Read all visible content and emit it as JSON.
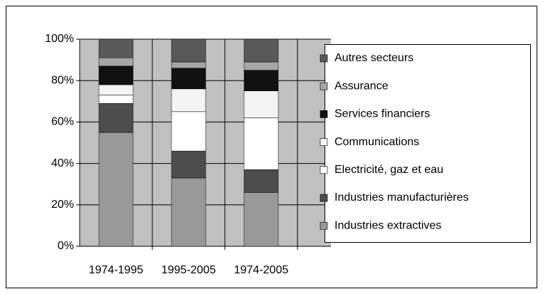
{
  "chart_data": {
    "type": "stacked-bar",
    "categories": [
      "1974-1995",
      "1995-2005",
      "1974-2005"
    ],
    "series": [
      {
        "name": "Industries extractives",
        "color": "#999999",
        "values": [
          55,
          33,
          26
        ]
      },
      {
        "name": "Industries manufacturières",
        "color": "#4d4d4d",
        "values": [
          14,
          13,
          11
        ]
      },
      {
        "name": "Electricité, gaz et eau",
        "color": "#ffffff",
        "values": [
          4,
          19,
          25
        ]
      },
      {
        "name": "Communications",
        "color": "#f4f4f4",
        "values": [
          5,
          11,
          13
        ]
      },
      {
        "name": "Services financiers",
        "color": "#111111",
        "values": [
          9,
          10,
          10
        ]
      },
      {
        "name": "Assurance",
        "color": "#a6a6a6",
        "values": [
          4,
          3,
          4
        ]
      },
      {
        "name": "Autres secteurs",
        "color": "#595959",
        "values": [
          9,
          11,
          11
        ]
      }
    ],
    "ylim": [
      0,
      100
    ],
    "yticks": [
      {
        "value": 0,
        "label": "0%"
      },
      {
        "value": 20,
        "label": "20%"
      },
      {
        "value": 40,
        "label": "40%"
      },
      {
        "value": 60,
        "label": "60%"
      },
      {
        "value": 80,
        "label": "80%"
      },
      {
        "value": 100,
        "label": "100%"
      }
    ],
    "grid": true
  }
}
